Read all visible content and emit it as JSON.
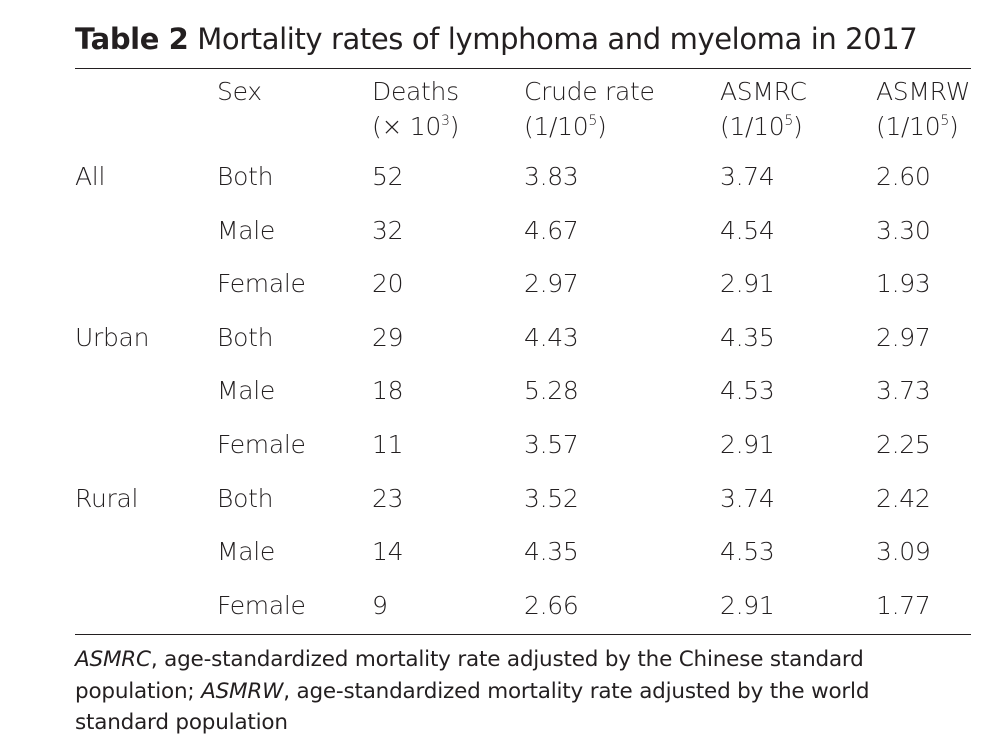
{
  "title": {
    "label": "Table 2",
    "text": "Mortality rates of lymphoma and myeloma in 2017"
  },
  "table": {
    "header": [
      {
        "label": "Sex"
      },
      {
        "label": "Deaths",
        "unit": {
          "pre": "(× 10",
          "sup": "3",
          "post": ")"
        }
      },
      {
        "label": "Crude rate",
        "unit": {
          "pre": "(1/10",
          "sup": "5",
          "post": ")"
        }
      },
      {
        "label": "ASMRC",
        "unit": {
          "pre": "(1/10",
          "sup": "5",
          "post": ")"
        }
      },
      {
        "label": "ASMRW",
        "unit": {
          "pre": "(1/10",
          "sup": "5",
          "post": ")"
        }
      }
    ],
    "groups": [
      {
        "name": "All",
        "rows": [
          [
            "Both",
            "52",
            "3.83",
            "3.74",
            "2.60"
          ],
          [
            "Male",
            "32",
            "4.67",
            "4.54",
            "3.30"
          ],
          [
            "Female",
            "20",
            "2.97",
            "2.91",
            "1.93"
          ]
        ]
      },
      {
        "name": "Urban",
        "rows": [
          [
            "Both",
            "29",
            "4.43",
            "4.35",
            "2.97"
          ],
          [
            "Male",
            "18",
            "5.28",
            "4.53",
            "3.73"
          ],
          [
            "Female",
            "11",
            "3.57",
            "2.91",
            "2.25"
          ]
        ]
      },
      {
        "name": "Rural",
        "rows": [
          [
            "Both",
            "23",
            "3.52",
            "3.74",
            "2.42"
          ],
          [
            "Male",
            "14",
            "4.35",
            "4.53",
            "3.09"
          ],
          [
            "Female",
            "9",
            "2.66",
            "2.91",
            "1.77"
          ]
        ]
      }
    ]
  },
  "footnote": [
    {
      "text": "ASMRC",
      "italic": true
    },
    {
      "text": ", age-standardized mortality rate adjusted by the Chinese standard population; "
    },
    {
      "text": "ASMRW",
      "italic": true
    },
    {
      "text": ", age-standardized mortality rate adjusted by the world standard population"
    }
  ]
}
